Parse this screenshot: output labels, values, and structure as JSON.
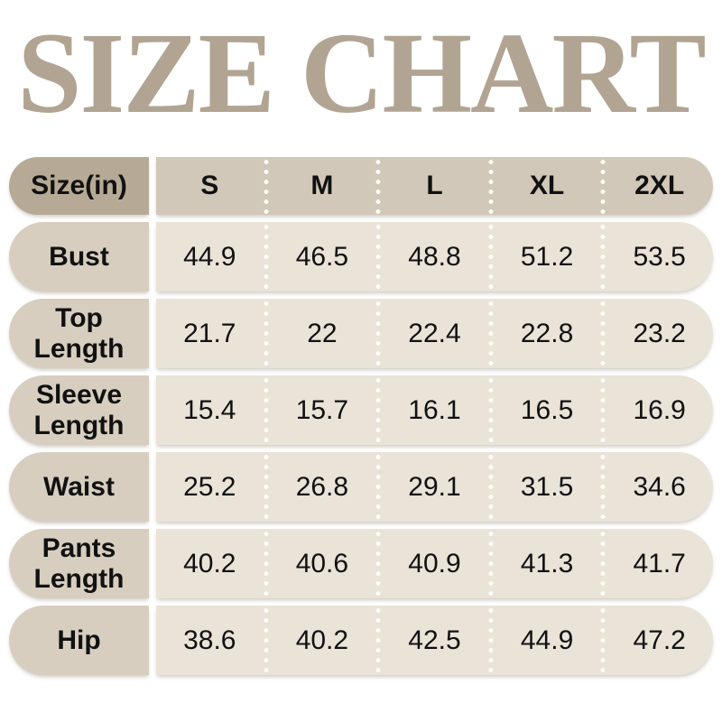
{
  "title": "SIZE CHART",
  "table": {
    "unit_header": "Size(in)",
    "size_headers": [
      "S",
      "M",
      "L",
      "XL",
      "2XL"
    ],
    "rows": [
      {
        "label": "Bust",
        "values": [
          "44.9",
          "46.5",
          "48.8",
          "51.2",
          "53.5"
        ]
      },
      {
        "label": "Top Length",
        "values": [
          "21.7",
          "22",
          "22.4",
          "22.8",
          "23.2"
        ]
      },
      {
        "label": "Sleeve Length",
        "values": [
          "15.4",
          "15.7",
          "16.1",
          "16.5",
          "16.9"
        ]
      },
      {
        "label": "Waist",
        "values": [
          "25.2",
          "26.8",
          "29.1",
          "31.5",
          "34.6"
        ]
      },
      {
        "label": "Pants Length",
        "values": [
          "40.2",
          "40.6",
          "40.9",
          "41.3",
          "41.7"
        ]
      },
      {
        "label": "Hip",
        "values": [
          "38.6",
          "40.2",
          "42.5",
          "44.9",
          "47.2"
        ]
      }
    ]
  },
  "colors": {
    "title_text": "#b1a492",
    "header_label_bg": "#b6aa96",
    "header_data_bg": "#d2c8b9",
    "row_label_bg": "#d7cec0",
    "row_data_bg": "#e9e3d8",
    "cell_text": "#111111",
    "separator_dots": "#ffffff",
    "page_bg": "#ffffff"
  },
  "chart_data": {
    "type": "table",
    "title": "SIZE CHART",
    "columns": [
      "Size(in)",
      "S",
      "M",
      "L",
      "XL",
      "2XL"
    ],
    "rows": [
      [
        "Bust",
        44.9,
        46.5,
        48.8,
        51.2,
        53.5
      ],
      [
        "Top Length",
        21.7,
        22,
        22.4,
        22.8,
        23.2
      ],
      [
        "Sleeve Length",
        15.4,
        15.7,
        16.1,
        16.5,
        16.9
      ],
      [
        "Waist",
        25.2,
        26.8,
        29.1,
        31.5,
        34.6
      ],
      [
        "Pants Length",
        40.2,
        40.6,
        40.9,
        41.3,
        41.7
      ],
      [
        "Hip",
        38.6,
        40.2,
        42.5,
        44.9,
        47.2
      ]
    ]
  }
}
